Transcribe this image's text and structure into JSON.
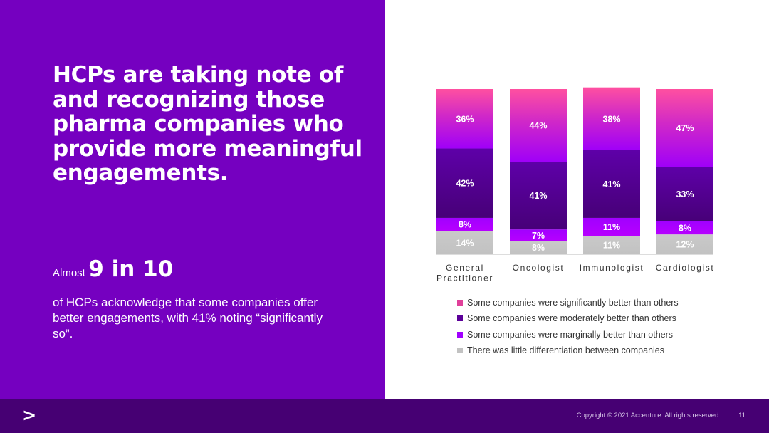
{
  "headline": "HCPs are taking note of and recognizing those pharma companies who provide more meaningful engagements.",
  "stat": {
    "prefix": "Almost",
    "value": "9 in 10",
    "description": "of HCPs acknowledge that some companies offer better engagements, with 41% noting “significantly so”."
  },
  "footer": {
    "logo": ">",
    "copyright": "Copyright © 2021 Accenture. All rights reserved.",
    "page_number": "11"
  },
  "chart_data": {
    "type": "bar",
    "stacked": true,
    "percent_stacked": true,
    "categories": [
      [
        "General",
        "Practitioner"
      ],
      [
        "Oncologist"
      ],
      [
        "Immunologist"
      ],
      [
        "Cardiologist"
      ]
    ],
    "series": [
      {
        "name": "There was little differentiation between companies",
        "values": [
          14,
          8,
          11,
          12
        ],
        "labels": [
          "14%",
          "8%",
          "11%",
          "12%"
        ],
        "color": "#c2c2c2"
      },
      {
        "name": "Some companies were marginally better than others",
        "values": [
          8,
          7,
          11,
          8
        ],
        "labels": [
          "8%",
          "7%",
          "11%",
          "8%"
        ],
        "color": "#a100ff"
      },
      {
        "name": "Some companies were moderately better than others",
        "values": [
          42,
          41,
          41,
          33
        ],
        "labels": [
          "42%",
          "41%",
          "41%",
          "33%"
        ],
        "color": "#5c0099"
      },
      {
        "name": "Some companies were significantly better than others",
        "values": [
          36,
          44,
          38,
          47
        ],
        "labels": [
          "36%",
          "44%",
          "38%",
          "47%"
        ],
        "color": "#e0409a"
      }
    ],
    "legend_order": [
      3,
      2,
      1,
      0
    ],
    "legend_position": "bottom",
    "ylim": [
      0,
      100
    ],
    "title": "",
    "xlabel": "",
    "ylabel": ""
  }
}
